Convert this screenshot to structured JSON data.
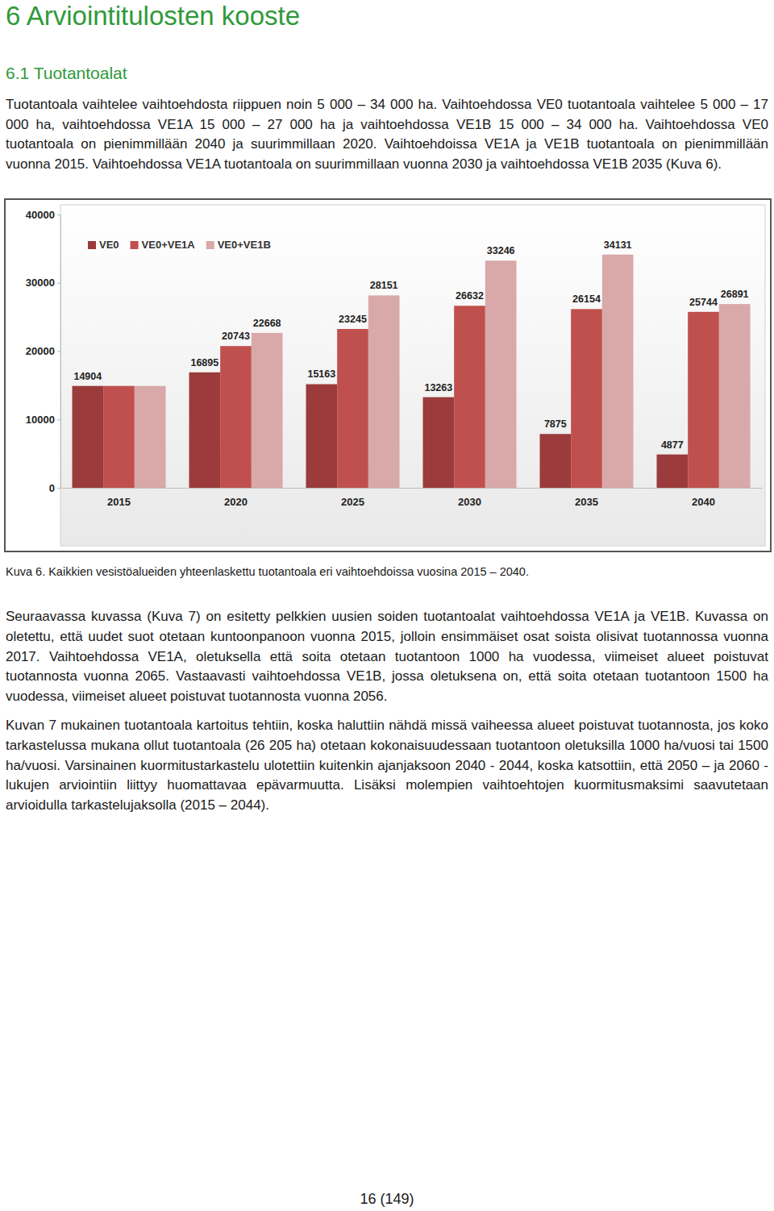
{
  "heading": "6 Arviointitulosten kooste",
  "section": "6.1 Tuotantoalat",
  "paragraph_1": "Tuotantoala vaihtelee vaihtoehdosta riippuen noin 5 000 – 34 000 ha. Vaihtoehdossa VE0 tuotantoala vaihtelee 5 000 – 17 000 ha, vaihtoehdossa VE1A 15 000 – 27 000 ha ja vaihtoehdossa VE1B 15 000 – 34 000 ha. Vaihtoehdossa VE0 tuotantoala on pienimmillään 2040 ja suurimmillaan 2020. Vaihtoehdoissa VE1A ja VE1B tuotantoala on pienimmillään vuonna 2015. Vaihtoehdossa VE1A tuotantoala on suurimmillaan vuonna 2030 ja vaihtoehdossa VE1B 2035 (Kuva 6).",
  "chart_data": {
    "type": "bar",
    "categories": [
      "2015",
      "2020",
      "2025",
      "2030",
      "2035",
      "2040"
    ],
    "series": [
      {
        "name": "VE0",
        "color": "#9b3b3b",
        "values": [
          14904,
          16895,
          15163,
          13263,
          7875,
          4877
        ],
        "value_labels": [
          "14904",
          "16895",
          "15163",
          "13263",
          "7875",
          "4877"
        ]
      },
      {
        "name": "VE0+VE1A",
        "color": "#c0504d",
        "values": [
          14904,
          20743,
          23245,
          26632,
          26154,
          25744
        ],
        "value_labels": [
          null,
          "20743",
          "23245",
          "26632",
          "26154",
          "25744"
        ]
      },
      {
        "name": "VE0+VE1B",
        "color": "#d9a8a8",
        "values": [
          14904,
          22668,
          28151,
          33246,
          34131,
          26891
        ],
        "value_labels": [
          null,
          "22668",
          "28151",
          "33246",
          "34131",
          "26891"
        ]
      }
    ],
    "ylim": [
      0,
      40000
    ],
    "yticks": [
      0,
      10000,
      20000,
      30000,
      40000
    ],
    "grid": false,
    "legend": "top-left",
    "data_labels": true
  },
  "caption": "Kuva 6. Kaikkien vesistöalueiden yhteenlaskettu tuotantoala eri vaihtoehdoissa vuosina 2015 – 2040.",
  "paragraph_2": "Seuraavassa kuvassa (Kuva 7) on esitetty pelkkien uusien soiden tuotantoalat vaihtoehdossa VE1A ja VE1B. Kuvassa on oletettu, että uudet suot otetaan kuntoonpanoon vuonna 2015, jolloin ensimmäiset osat soista olisivat tuotannossa vuonna 2017. Vaihtoehdossa VE1A, oletuksella että soita otetaan tuotantoon 1000 ha vuodessa, viimeiset alueet poistuvat tuotannosta vuonna 2065. Vastaavasti vaihtoehdossa VE1B, jossa oletuksena on, että soita otetaan tuotantoon 1500 ha vuodessa, viimeiset alueet poistuvat tuotannosta vuonna 2056.",
  "paragraph_3": "Kuvan 7 mukainen tuotantoala kartoitus tehtiin, koska haluttiin nähdä missä vaiheessa alueet poistuvat tuotannosta, jos koko tarkastelussa mukana ollut tuotantoala (26 205 ha) otetaan kokonaisuudessaan tuotantoon oletuksilla 1000 ha/vuosi tai 1500 ha/vuosi. Varsinainen kuormitustarkastelu ulotettiin kuitenkin ajanjaksoon 2040 - 2044, koska katsottiin, että 2050 – ja 2060 -lukujen arviointiin liittyy huomattavaa epävarmuutta. Lisäksi molempien vaihtoehtojen kuormitusmaksimi saavutetaan arvioidulla tarkastelujaksolla (2015 – 2044).",
  "page_number": "16 (149)"
}
